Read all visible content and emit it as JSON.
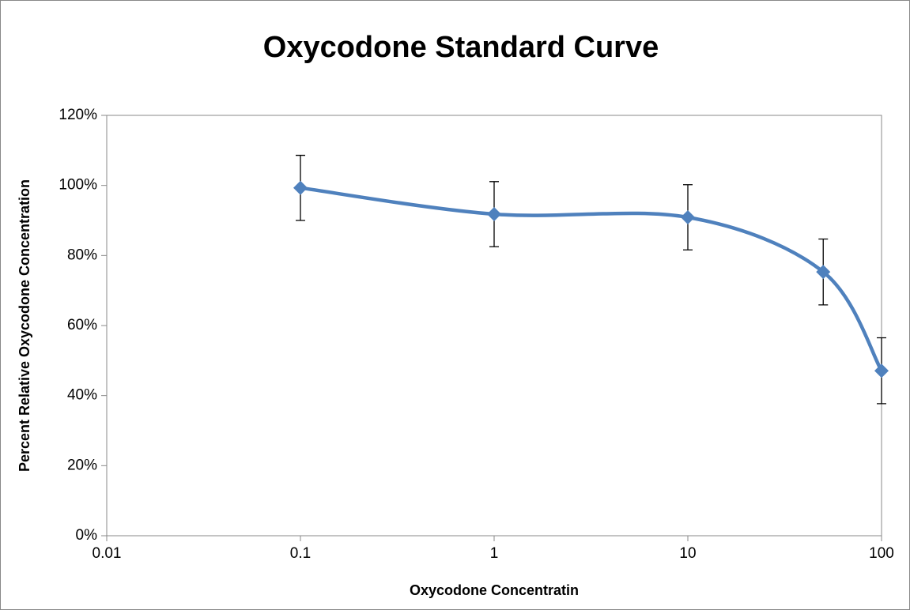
{
  "chart_data": {
    "type": "line",
    "title": "Oxycodone Standard Curve",
    "x_label": "Oxycodone Concentratin",
    "y_label": "Percent Relative Oxycodone Concentration",
    "x": [
      0.1,
      1,
      10,
      50,
      100
    ],
    "series": [
      {
        "color": "#4f81bd",
        "values": [
          99.3,
          91.8,
          90.9,
          75.3,
          47.1
        ],
        "errors": [
          9.3,
          9.3,
          9.3,
          9.4,
          9.4
        ]
      }
    ],
    "xlim": [
      0.01,
      100
    ],
    "xticks": [
      0.01,
      0.1,
      1,
      10,
      100
    ],
    "log_x": true,
    "ylim": [
      0,
      120
    ],
    "yticks": [
      {
        "value": 0,
        "label": "0%"
      },
      {
        "value": 20,
        "label": "20%"
      },
      {
        "value": 40,
        "label": "40%"
      },
      {
        "value": 60,
        "label": "60%"
      },
      {
        "value": 80,
        "label": "80%"
      },
      {
        "value": 100,
        "label": "100%"
      },
      {
        "value": 120,
        "label": "120%"
      }
    ],
    "smooth": true,
    "grid": false,
    "marker": "diamond"
  }
}
